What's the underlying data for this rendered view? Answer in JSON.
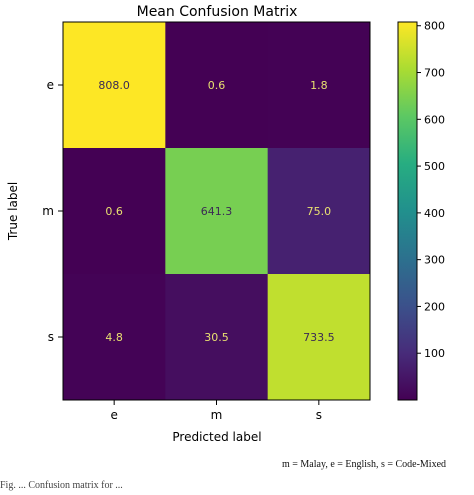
{
  "chart_data": {
    "type": "heatmap",
    "title": "Mean Confusion Matrix",
    "xlabel": "Predicted label",
    "ylabel": "True label",
    "x_categories": [
      "e",
      "m",
      "s"
    ],
    "y_categories": [
      "e",
      "m",
      "s"
    ],
    "values": [
      [
        808.0,
        0.6,
        1.8
      ],
      [
        0.6,
        641.3,
        75.0
      ],
      [
        4.8,
        30.5,
        733.5
      ]
    ],
    "cell_labels": [
      [
        "808.0",
        "0.6",
        "1.8"
      ],
      [
        "0.6",
        "641.3",
        "75.0"
      ],
      [
        "4.8",
        "30.5",
        "733.5"
      ]
    ],
    "colormap": "viridis",
    "colorbar": {
      "range": [
        0,
        808
      ],
      "ticks": [
        100,
        200,
        300,
        400,
        500,
        600,
        700,
        800
      ],
      "tick_labels": [
        "100",
        "200",
        "300",
        "400",
        "500",
        "600",
        "700",
        "800"
      ]
    },
    "grid": false
  },
  "caption": "m = Malay, e = English, s = Code-Mixed",
  "figure_note": "Fig. ... Confusion matrix for ..."
}
